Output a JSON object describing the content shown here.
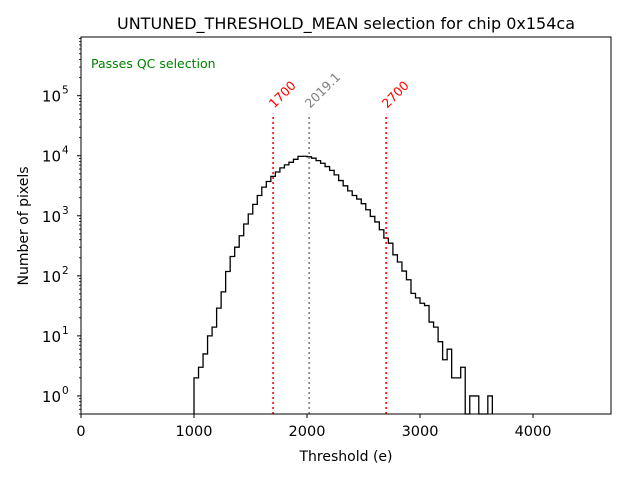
{
  "chart_data": {
    "type": "histogram",
    "title": "UNTUNED_THRESHOLD_MEAN selection for chip 0x154ca",
    "xlabel": "Threshold (e)",
    "ylabel": "Number of pixels",
    "xlim": [
      0,
      4690
    ],
    "ylim": [
      0.5,
      950000
    ],
    "yscale": "log",
    "grid": false,
    "x_ticks": [
      0,
      1000,
      2000,
      3000,
      4000
    ],
    "x_tick_labels": [
      "0",
      "1000",
      "2000",
      "3000",
      "4000"
    ],
    "y_ticks": [
      1,
      10,
      100,
      1000,
      10000,
      100000
    ],
    "y_tick_labels": [
      {
        "base": "10",
        "exp": "0"
      },
      {
        "base": "10",
        "exp": "1"
      },
      {
        "base": "10",
        "exp": "2"
      },
      {
        "base": "10",
        "exp": "3"
      },
      {
        "base": "10",
        "exp": "4"
      },
      {
        "base": "10",
        "exp": "5"
      }
    ],
    "bin_start": 1000,
    "bin_width": 40,
    "counts": [
      2,
      3,
      5,
      10,
      14,
      29,
      54,
      118,
      210,
      300,
      465,
      730,
      1070,
      1550,
      2180,
      3000,
      3720,
      4540,
      5370,
      6280,
      7050,
      7780,
      8730,
      9750,
      9800,
      9600,
      9100,
      8300,
      7500,
      6600,
      5700,
      4800,
      3860,
      3160,
      2600,
      2180,
      1900,
      1590,
      1260,
      975,
      790,
      585,
      425,
      350,
      224,
      170,
      120,
      86,
      51,
      43,
      35,
      32,
      17,
      14,
      8,
      4,
      6,
      2,
      2,
      3,
      0,
      1,
      1,
      0,
      0,
      1
    ],
    "histogram_color": "#000000",
    "vlines": [
      {
        "x": 1700,
        "label": "1700",
        "color": "#ff0000",
        "style": "dotted",
        "top": 50000
      },
      {
        "x": 2019.1,
        "label": "2019.1",
        "color": "#808080",
        "style": "dotted",
        "top": 50000
      },
      {
        "x": 2700,
        "label": "2700",
        "color": "#ff0000",
        "style": "dotted",
        "top": 50000
      }
    ],
    "annotations": [
      {
        "text": "Passes QC selection",
        "color": "#008000",
        "position": "top-left"
      }
    ]
  }
}
